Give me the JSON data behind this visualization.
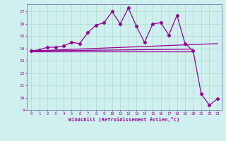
{
  "xlabel": "Windchill (Refroidissement éolien,°C)",
  "bg_color": "#cff0ee",
  "grid_color": "#aaddcc",
  "line_color": "#990099",
  "spine_color": "#7777aa",
  "xlim": [
    -0.5,
    23.5
  ],
  "ylim": [
    9,
    17.6
  ],
  "yticks": [
    9,
    10,
    11,
    12,
    13,
    14,
    15,
    16,
    17
  ],
  "xticks": [
    0,
    1,
    2,
    3,
    4,
    5,
    6,
    7,
    8,
    9,
    10,
    11,
    12,
    13,
    14,
    15,
    16,
    17,
    18,
    19,
    20,
    21,
    22,
    23
  ],
  "series": [
    {
      "x": [
        0,
        1,
        2,
        3,
        4,
        5,
        6,
        7,
        8,
        9,
        10,
        11,
        12,
        13,
        14,
        15,
        16,
        17,
        18,
        19,
        20,
        21,
        22,
        23
      ],
      "y": [
        13.8,
        13.9,
        14.1,
        14.1,
        14.2,
        14.5,
        14.4,
        15.3,
        15.9,
        16.1,
        17.0,
        16.0,
        17.3,
        15.8,
        14.5,
        16.0,
        16.1,
        15.1,
        16.7,
        14.4,
        13.8,
        10.3,
        9.4,
        9.9
      ],
      "marker": "D",
      "markersize": 2.2,
      "linewidth": 0.9,
      "has_marker": true
    },
    {
      "x": [
        0,
        23
      ],
      "y": [
        13.8,
        14.4
      ],
      "marker": null,
      "markersize": 0,
      "linewidth": 0.9,
      "has_marker": false
    },
    {
      "x": [
        0,
        20
      ],
      "y": [
        13.75,
        13.75
      ],
      "marker": null,
      "markersize": 0,
      "linewidth": 0.9,
      "has_marker": false
    },
    {
      "x": [
        0,
        20
      ],
      "y": [
        13.8,
        13.95
      ],
      "marker": null,
      "markersize": 0,
      "linewidth": 0.9,
      "has_marker": false
    }
  ]
}
